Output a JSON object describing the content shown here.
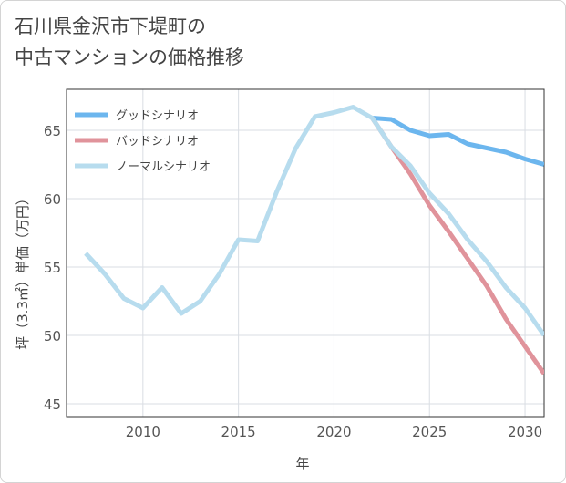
{
  "title_lines": [
    "石川県金沢市下堤町の",
    "中古マンションの価格推移"
  ],
  "chart_data": {
    "type": "line",
    "xlabel": "年",
    "ylabel": "坪（3.3㎡）単価（万円）",
    "xlim": [
      2006,
      2031
    ],
    "ylim": [
      44,
      68
    ],
    "x_ticks": [
      2010,
      2015,
      2020,
      2025,
      2030
    ],
    "y_ticks": [
      45,
      50,
      55,
      60,
      65
    ],
    "grid": true,
    "legend_position": "top-left",
    "series": [
      {
        "name": "グッドシナリオ",
        "color": "#6cb6ee",
        "x": [
          2022,
          2023,
          2024,
          2025,
          2026,
          2027,
          2028,
          2029,
          2030,
          2031
        ],
        "y": [
          65.9,
          65.8,
          65.0,
          64.6,
          64.7,
          64.0,
          63.7,
          63.4,
          62.9,
          62.5
        ]
      },
      {
        "name": "バッドシナリオ",
        "color": "#e0939b",
        "x": [
          2022,
          2023,
          2024,
          2025,
          2026,
          2027,
          2028,
          2029,
          2030,
          2031
        ],
        "y": [
          65.9,
          63.8,
          61.8,
          59.5,
          57.6,
          55.6,
          53.6,
          51.2,
          49.2,
          47.2
        ]
      },
      {
        "name": "ノーマルシナリオ",
        "color": "#b7dcee",
        "x": [
          2007,
          2008,
          2009,
          2010,
          2011,
          2012,
          2013,
          2014,
          2015,
          2016,
          2017,
          2018,
          2019,
          2020,
          2021,
          2022,
          2023,
          2024,
          2025,
          2026,
          2027,
          2028,
          2029,
          2030,
          2031
        ],
        "y": [
          56.0,
          54.5,
          52.7,
          52.0,
          53.5,
          51.6,
          52.5,
          54.5,
          57.0,
          56.9,
          60.5,
          63.7,
          66.0,
          66.3,
          66.7,
          65.9,
          63.8,
          62.4,
          60.4,
          58.9,
          57.0,
          55.4,
          53.5,
          52.0,
          50.0
        ]
      }
    ]
  }
}
